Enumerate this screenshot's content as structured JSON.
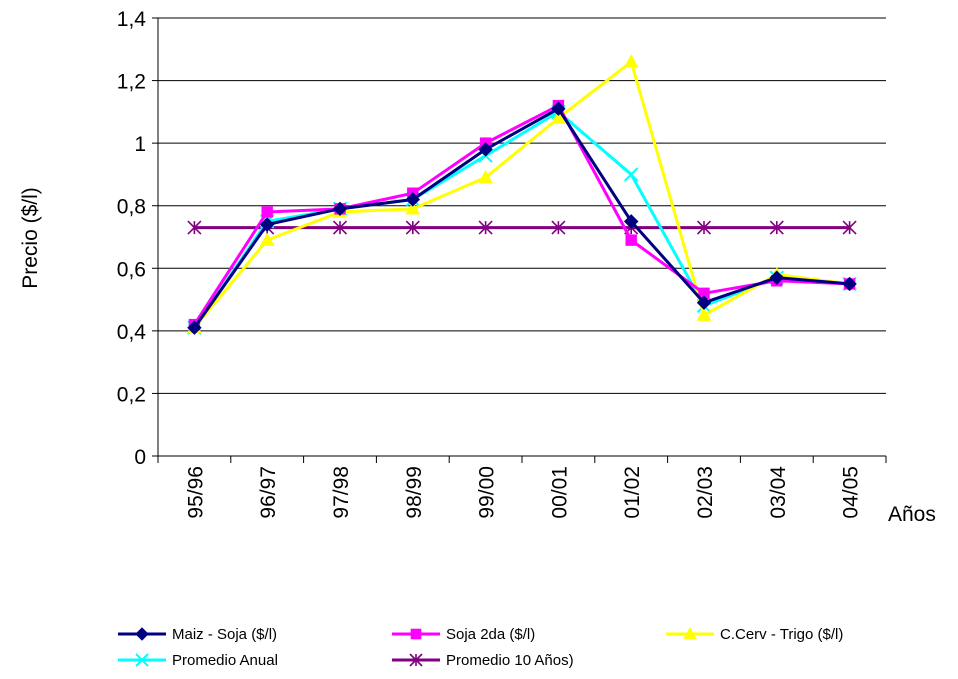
{
  "chart_data": {
    "type": "line",
    "ylabel": "Precio ($/l)",
    "xlabel": "Años",
    "ylim": [
      0,
      1.4
    ],
    "yticks": [
      "0",
      "0,2",
      "0,4",
      "0,6",
      "0,8",
      "1",
      "1,2",
      "1,4"
    ],
    "ytick_values": [
      0,
      0.2,
      0.4,
      0.6,
      0.8,
      1.0,
      1.2,
      1.4
    ],
    "categories": [
      "95/96",
      "96/97",
      "97/98",
      "98/99",
      "99/00",
      "00/01",
      "01/02",
      "02/03",
      "03/04",
      "04/05"
    ],
    "grid": true,
    "legend_position": "bottom",
    "series": [
      {
        "name": "Maiz - Soja ($/l)",
        "color": "#000080",
        "marker": "diamond",
        "values": [
          0.41,
          0.74,
          0.79,
          0.82,
          0.98,
          1.11,
          0.75,
          0.49,
          0.57,
          0.55
        ]
      },
      {
        "name": "Soja 2da ($/l)",
        "color": "#FF00FF",
        "marker": "square",
        "values": [
          0.42,
          0.78,
          0.79,
          0.84,
          1.0,
          1.12,
          0.69,
          0.52,
          0.56,
          0.55
        ]
      },
      {
        "name": "C.Cerv - Trigo ($/l)",
        "color": "#FFFF00",
        "marker": "triangle",
        "values": [
          0.41,
          0.69,
          0.78,
          0.79,
          0.89,
          1.08,
          1.26,
          0.45,
          0.58,
          0.55
        ]
      },
      {
        "name": "Promedio Anual",
        "color": "#00FFFF",
        "marker": "x",
        "values": [
          0.41,
          0.75,
          0.79,
          0.82,
          0.96,
          1.1,
          0.9,
          0.48,
          0.57,
          0.55
        ]
      },
      {
        "name": "Promedio 10 Años)",
        "color": "#800080",
        "marker": "asterisk",
        "values": [
          0.73,
          0.73,
          0.73,
          0.73,
          0.73,
          0.73,
          0.73,
          0.73,
          0.73,
          0.73
        ]
      }
    ]
  }
}
